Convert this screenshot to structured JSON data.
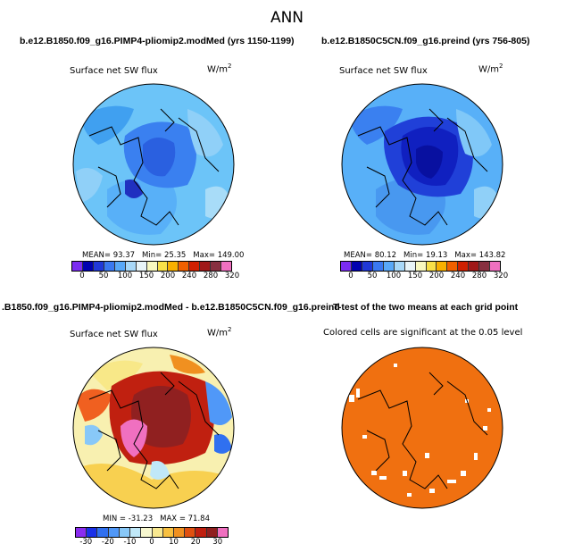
{
  "title": "ANN",
  "panels": [
    {
      "title": "b.e12.B1850.f09_g16.PIMP4-pliomip2.modMed (yrs 1150-1199)",
      "variable": "Surface net SW flux",
      "units": "W/m",
      "units_exp": "2",
      "stats": {
        "mean": "MEAN= 93.37",
        "min": "Min= 25.35",
        "max": "Max= 149.00"
      },
      "colorbar": {
        "colors": [
          "#7b2cf2",
          "#0000b0",
          "#2038d8",
          "#3a78f0",
          "#58a8f8",
          "#a8d8f8",
          "#e8f4f8",
          "#f8f8c0",
          "#f8e048",
          "#f8b000",
          "#f06000",
          "#d02000",
          "#a01818",
          "#883040",
          "#f070c0"
        ],
        "ticks": [
          "0",
          "50",
          "100",
          "150",
          "200",
          "240",
          "280",
          "320"
        ]
      }
    },
    {
      "title": "b.e12.B1850C5CN.f09_g16.preind (yrs 756-805)",
      "variable": "Surface net SW flux",
      "units": "W/m",
      "units_exp": "2",
      "stats": {
        "mean": "MEAN= 80.12",
        "min": "Min= 19.13",
        "max": "Max= 143.82"
      },
      "colorbar": {
        "colors": [
          "#7b2cf2",
          "#0000b0",
          "#2038d8",
          "#3a78f0",
          "#58a8f8",
          "#a8d8f8",
          "#e8f4f8",
          "#f8f8c0",
          "#f8e048",
          "#f8b000",
          "#f06000",
          "#d02000",
          "#a01818",
          "#883040",
          "#f070c0"
        ],
        "ticks": [
          "0",
          "50",
          "100",
          "150",
          "200",
          "240",
          "280",
          "320"
        ]
      }
    },
    {
      "title": ".B1850.f09_g16.PIMP4-pliomip2.modMed - b.e12.B1850C5CN.f09_g16.preind",
      "variable": "Surface net SW flux",
      "units": "W/m",
      "units_exp": "2",
      "stats": {
        "min": "MIN = -31.23",
        "max": "MAX = 71.84"
      },
      "colorbar": {
        "colors": [
          "#8a2cf0",
          "#1a30e8",
          "#3070f0",
          "#5098f8",
          "#88c8f8",
          "#c0e8f8",
          "#f8f8d0",
          "#f8e890",
          "#f8c040",
          "#f09020",
          "#e05010",
          "#c02010",
          "#902020",
          "#f070c0"
        ],
        "ticks": [
          "-30",
          "-20",
          "-10",
          "0",
          "10",
          "20",
          "30"
        ]
      }
    },
    {
      "title": "T-test of the two means at each grid point",
      "variable": "Colored cells are significant at the 0.05 level"
    }
  ]
}
